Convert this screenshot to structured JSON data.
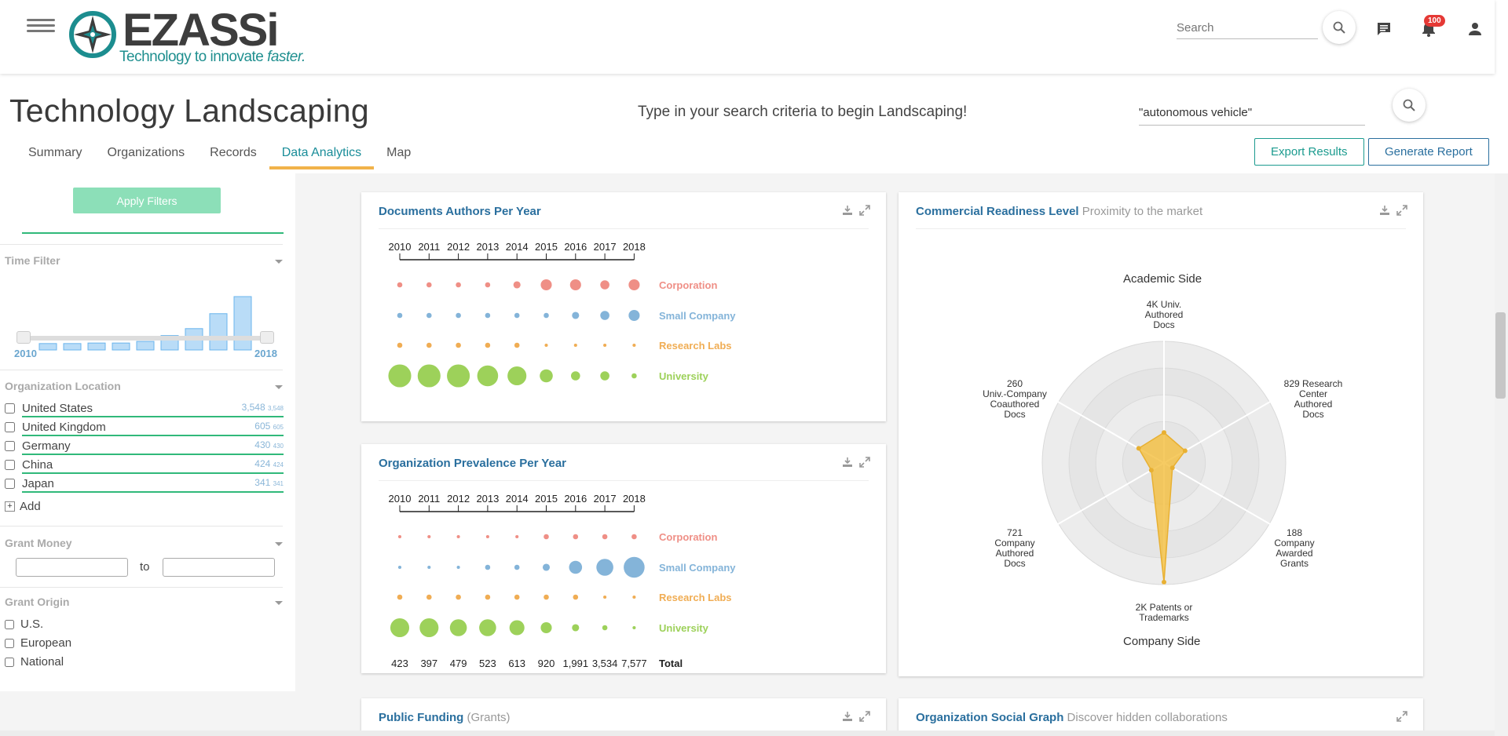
{
  "header": {
    "logo_text": "EZASSi",
    "logo_tagline_a": "Technology to innovate ",
    "logo_tagline_b": "faster.",
    "search_placeholder": "Search",
    "notifications_count": "100",
    "icons": [
      "menu-icon",
      "search-icon",
      "chat-icon",
      "bell-icon",
      "user-icon"
    ]
  },
  "page": {
    "title": "Technology Landscaping",
    "hint": "Type in your search criteria to begin Landscaping!",
    "search_value": "\"autonomous vehicle\"",
    "tabs": [
      {
        "label": "Summary"
      },
      {
        "label": "Organizations"
      },
      {
        "label": "Records"
      },
      {
        "label": "Data Analytics",
        "active": true
      },
      {
        "label": "Map"
      }
    ],
    "export_label": "Export Results",
    "generate_label": "Generate Report"
  },
  "sidebar": {
    "apply_label": "Apply Filters",
    "time_filter": {
      "title": "Time Filter",
      "start": "2010",
      "end": "2018",
      "histogram": [
        0,
        0.12,
        0.12,
        0.13,
        0.13,
        0.16,
        0.27,
        0.4,
        0.68,
        1.0
      ]
    },
    "location": {
      "title": "Organization Location",
      "items": [
        {
          "name": "United States",
          "count": "3,548",
          "small": "3,548"
        },
        {
          "name": "United Kingdom",
          "count": "605",
          "small": "605"
        },
        {
          "name": "Germany",
          "count": "430",
          "small": "430"
        },
        {
          "name": "China",
          "count": "424",
          "small": "424"
        },
        {
          "name": "Japan",
          "count": "341",
          "small": "341"
        }
      ],
      "add_label": "Add"
    },
    "grant_money": {
      "title": "Grant Money",
      "to_label": "to"
    },
    "grant_origin": {
      "title": "Grant Origin",
      "items": [
        "U.S.",
        "European",
        "National"
      ]
    }
  },
  "panels": {
    "authors": {
      "title": "Documents Authors Per Year"
    },
    "prevalence": {
      "title": "Organization Prevalence Per Year",
      "total_label": "Total"
    },
    "readiness": {
      "title": "Commercial Readiness Level",
      "subtitle": "Proximity to the market"
    },
    "funding": {
      "title": "Public Funding",
      "subtitle": "(Grants)"
    },
    "social": {
      "title": "Organization Social Graph",
      "subtitle": "Discover hidden collaborations"
    }
  },
  "chart_data": [
    {
      "type": "scatter",
      "title": "Documents Authors Per Year",
      "x": [
        "2010",
        "2011",
        "2012",
        "2013",
        "2014",
        "2015",
        "2016",
        "2017",
        "2018"
      ],
      "series": [
        {
          "name": "Corporation",
          "color": "#ef8f86",
          "values": [
            2,
            2,
            2,
            2,
            3,
            5,
            5,
            4,
            5
          ]
        },
        {
          "name": "Small Company",
          "color": "#84b4d9",
          "values": [
            2,
            2,
            2,
            2,
            2,
            2,
            3,
            4,
            5
          ]
        },
        {
          "name": "Research Labs",
          "color": "#f0ad54",
          "values": [
            2,
            2,
            2,
            2,
            2,
            1,
            1,
            1,
            1
          ]
        },
        {
          "name": "University",
          "color": "#9dd15a",
          "values": [
            11,
            11,
            11,
            10,
            9,
            6,
            4,
            4,
            2
          ]
        }
      ]
    },
    {
      "type": "scatter",
      "title": "Organization Prevalence Per Year",
      "x": [
        "2010",
        "2011",
        "2012",
        "2013",
        "2014",
        "2015",
        "2016",
        "2017",
        "2018"
      ],
      "series": [
        {
          "name": "Corporation",
          "color": "#ef8f86",
          "values": [
            1,
            1,
            1,
            1,
            1,
            2,
            2,
            2,
            2
          ]
        },
        {
          "name": "Small Company",
          "color": "#84b4d9",
          "values": [
            1,
            1,
            1,
            2,
            2,
            3,
            6,
            8,
            10
          ]
        },
        {
          "name": "Research Labs",
          "color": "#f0ad54",
          "values": [
            2,
            2,
            2,
            2,
            2,
            2,
            2,
            1,
            1
          ]
        },
        {
          "name": "University",
          "color": "#9dd15a",
          "values": [
            9,
            9,
            8,
            8,
            7,
            5,
            3,
            2,
            1
          ]
        }
      ],
      "totals": [
        "423",
        "397",
        "479",
        "523",
        "613",
        "920",
        "1,991",
        "3,534",
        "7,577"
      ]
    },
    {
      "type": "radar",
      "title": "Commercial Readiness Level",
      "top_label": "Academic Side",
      "bottom_label": "Company Side",
      "axes": [
        {
          "label": "4K Univ. Authored Docs",
          "lines": [
            "4K Univ.",
            "Authored",
            "Docs"
          ],
          "value": 0.25
        },
        {
          "label": "829 Research Center Authored Docs",
          "lines": [
            "829 Research",
            "Center",
            "Authored",
            "Docs"
          ],
          "value": 0.2
        },
        {
          "label": "188 Company Awarded Grants",
          "lines": [
            "188",
            "Company",
            "Awarded",
            "Grants"
          ],
          "value": 0.08
        },
        {
          "label": "2K Patents or Trademarks",
          "lines": [
            "2K Patents or",
            "Trademarks"
          ],
          "value": 0.98
        },
        {
          "label": "721 Company Authored Docs",
          "lines": [
            "721",
            "Company",
            "Authored",
            "Docs"
          ],
          "value": 0.12
        },
        {
          "label": "260 Univ.-Company Coauthored Docs",
          "lines": [
            "260",
            "Univ.-Company",
            "Coauthored",
            "Docs"
          ],
          "value": 0.24
        }
      ]
    }
  ]
}
